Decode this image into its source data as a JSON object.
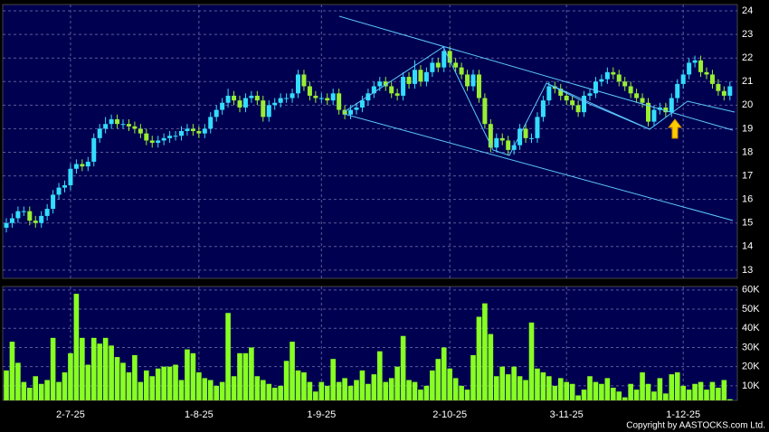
{
  "chart_data": [
    {
      "type": "candlestick",
      "up_color": "#33ddff",
      "down_color": "#99ee33",
      "ylim": [
        12.65,
        24.27
      ],
      "yticks": [
        13,
        14,
        15,
        16,
        17,
        18,
        19,
        20,
        21,
        22,
        23,
        24
      ],
      "grid": true,
      "open": [
        14.8,
        15.0,
        15.2,
        15.5,
        15.5,
        15.1,
        15.0,
        15.3,
        15.6,
        16.2,
        16.5,
        16.6,
        17.3,
        17.5,
        17.4,
        17.6,
        18.6,
        19.0,
        19.2,
        19.4,
        19.2,
        19.2,
        19.1,
        19.0,
        18.8,
        18.5,
        18.4,
        18.5,
        18.6,
        18.7,
        18.7,
        18.9,
        19.0,
        18.9,
        18.8,
        19.0,
        19.5,
        19.8,
        20.1,
        20.4,
        20.2,
        19.9,
        20.3,
        20.4,
        20.2,
        19.5,
        20.0,
        20.1,
        20.3,
        20.3,
        20.5,
        21.3,
        20.8,
        20.4,
        20.3,
        20.3,
        20.2,
        20.5,
        19.8,
        19.6,
        19.8,
        19.9,
        20.2,
        20.5,
        20.8,
        21.0,
        20.8,
        20.5,
        20.4,
        21.2,
        20.9,
        21.5,
        21.0,
        21.4,
        21.8,
        21.6,
        22.3,
        21.8,
        21.6,
        21.3,
        20.8,
        21.3,
        20.3,
        19.2,
        18.2,
        18.6,
        18.5,
        18.1,
        18.3,
        19.0,
        18.6,
        18.6,
        19.5,
        20.2,
        20.8,
        20.7,
        20.4,
        20.2,
        20.0,
        19.7,
        20.4,
        20.5,
        21.0,
        21.1,
        21.4,
        21.3,
        21.0,
        20.8,
        20.5,
        20.3,
        20.1,
        19.3,
        19.8,
        19.9,
        19.7,
        20.3,
        20.9,
        21.3,
        21.8,
        21.9,
        21.4,
        21.3,
        20.9,
        20.6,
        20.4
      ],
      "high": [
        15.2,
        15.4,
        15.7,
        15.7,
        15.7,
        15.3,
        15.5,
        15.8,
        16.4,
        16.7,
        16.8,
        17.5,
        17.7,
        17.7,
        17.8,
        18.8,
        19.2,
        19.5,
        19.6,
        19.6,
        19.4,
        19.4,
        19.3,
        19.2,
        19.0,
        18.7,
        18.7,
        18.8,
        18.9,
        18.9,
        19.1,
        19.2,
        19.2,
        19.1,
        19.2,
        19.7,
        20.0,
        20.3,
        20.7,
        20.6,
        20.4,
        20.5,
        20.6,
        20.6,
        20.4,
        20.2,
        20.3,
        20.5,
        20.5,
        20.7,
        21.5,
        21.5,
        21.0,
        20.6,
        20.5,
        20.5,
        20.7,
        20.7,
        20.0,
        20.0,
        20.1,
        20.4,
        20.7,
        21.0,
        21.2,
        21.2,
        21.0,
        20.7,
        21.4,
        21.4,
        21.9,
        21.7,
        21.6,
        22.0,
        22.0,
        22.5,
        22.5,
        22.0,
        21.8,
        21.5,
        21.5,
        21.5,
        20.5,
        19.4,
        18.8,
        18.8,
        18.7,
        18.5,
        19.2,
        19.2,
        18.8,
        19.7,
        20.4,
        21.0,
        21.0,
        20.9,
        20.6,
        20.4,
        20.2,
        20.6,
        20.7,
        21.2,
        21.3,
        21.6,
        21.6,
        21.5,
        21.2,
        21.0,
        20.7,
        20.5,
        20.3,
        20.0,
        20.1,
        20.1,
        20.5,
        21.1,
        21.5,
        22.0,
        22.1,
        22.1,
        21.6,
        21.5,
        21.1,
        20.8,
        21.0
      ],
      "low": [
        14.6,
        14.8,
        15.0,
        15.3,
        14.9,
        14.8,
        14.8,
        15.1,
        15.4,
        16.0,
        16.3,
        16.4,
        17.1,
        17.2,
        17.2,
        17.4,
        18.4,
        18.8,
        19.0,
        19.0,
        19.0,
        18.9,
        18.8,
        18.6,
        18.3,
        18.2,
        18.2,
        18.3,
        18.4,
        18.5,
        18.5,
        18.7,
        18.7,
        18.6,
        18.6,
        18.8,
        19.3,
        19.6,
        19.9,
        20.0,
        19.7,
        19.7,
        20.1,
        20.0,
        19.3,
        19.3,
        19.8,
        19.9,
        20.1,
        20.1,
        20.3,
        20.6,
        20.2,
        20.1,
        20.1,
        20.0,
        20.0,
        19.6,
        19.4,
        19.4,
        19.6,
        19.7,
        20.0,
        20.3,
        20.6,
        20.6,
        20.3,
        20.2,
        20.2,
        20.7,
        20.7,
        20.8,
        20.8,
        21.2,
        21.4,
        21.4,
        21.6,
        21.4,
        21.1,
        20.6,
        20.6,
        20.1,
        19.0,
        18.0,
        18.0,
        18.3,
        17.9,
        17.9,
        18.1,
        18.4,
        18.4,
        18.4,
        19.3,
        20.0,
        20.5,
        20.2,
        20.0,
        19.8,
        19.5,
        19.5,
        20.2,
        20.3,
        20.8,
        20.9,
        21.1,
        20.8,
        20.6,
        20.3,
        20.1,
        19.9,
        19.1,
        19.1,
        19.6,
        19.5,
        19.5,
        20.1,
        20.7,
        21.1,
        21.6,
        21.2,
        21.1,
        20.7,
        20.4,
        20.2,
        20.2
      ],
      "close": [
        15.0,
        15.2,
        15.5,
        15.5,
        15.1,
        15.0,
        15.3,
        15.6,
        16.2,
        16.5,
        16.6,
        17.3,
        17.5,
        17.4,
        17.6,
        18.6,
        19.0,
        19.2,
        19.4,
        19.2,
        19.2,
        19.1,
        19.0,
        18.8,
        18.5,
        18.4,
        18.5,
        18.6,
        18.7,
        18.7,
        18.9,
        19.0,
        18.9,
        18.8,
        19.0,
        19.5,
        19.8,
        20.1,
        20.4,
        20.2,
        19.9,
        20.3,
        20.4,
        20.2,
        19.5,
        20.0,
        20.1,
        20.3,
        20.3,
        20.5,
        21.3,
        20.8,
        20.4,
        20.3,
        20.3,
        20.2,
        20.5,
        19.8,
        19.6,
        19.8,
        19.9,
        20.2,
        20.5,
        20.8,
        21.0,
        20.8,
        20.5,
        20.4,
        21.2,
        20.9,
        21.5,
        21.0,
        21.4,
        21.8,
        21.6,
        22.3,
        21.8,
        21.6,
        21.3,
        20.8,
        21.3,
        20.3,
        19.2,
        18.2,
        18.6,
        18.5,
        18.1,
        18.3,
        19.0,
        18.6,
        18.6,
        19.5,
        20.2,
        20.8,
        20.7,
        20.4,
        20.2,
        20.0,
        19.7,
        20.4,
        20.5,
        21.0,
        21.1,
        21.4,
        21.3,
        21.0,
        20.8,
        20.5,
        20.3,
        20.1,
        19.3,
        19.8,
        19.9,
        19.7,
        20.3,
        20.9,
        21.3,
        21.8,
        21.9,
        21.4,
        21.3,
        20.9,
        20.6,
        20.4,
        20.8
      ]
    },
    {
      "type": "bar",
      "color": "#88ff22",
      "ylim": [
        2400,
        61800
      ],
      "yticks": [
        {
          "value": 10000,
          "label": "10K"
        },
        {
          "value": 20000,
          "label": "20K"
        },
        {
          "value": 30000,
          "label": "30K"
        },
        {
          "value": 40000,
          "label": "40K"
        },
        {
          "value": 50000,
          "label": "50K"
        },
        {
          "value": 60000,
          "label": "60K"
        }
      ],
      "grid": true,
      "categories": [
        null,
        null,
        null,
        null,
        null,
        null,
        null,
        null,
        null,
        null,
        null,
        "2-7-25",
        null,
        null,
        null,
        null,
        null,
        null,
        null,
        null,
        null,
        null,
        null,
        null,
        null,
        null,
        null,
        null,
        null,
        null,
        null,
        null,
        null,
        "1-8-25",
        null,
        null,
        null,
        null,
        null,
        null,
        null,
        null,
        null,
        null,
        null,
        null,
        null,
        null,
        null,
        null,
        null,
        null,
        null,
        null,
        "1-9-25",
        null,
        null,
        null,
        null,
        null,
        null,
        null,
        null,
        null,
        null,
        null,
        null,
        null,
        null,
        null,
        null,
        null,
        null,
        null,
        null,
        null,
        "2-10-25",
        null,
        null,
        null,
        null,
        null,
        null,
        null,
        null,
        null,
        null,
        null,
        null,
        null,
        null,
        null,
        null,
        null,
        null,
        null,
        "3-11-25",
        null,
        null,
        null,
        null,
        null,
        null,
        null,
        null,
        null,
        null,
        null,
        null,
        null,
        null,
        null,
        null,
        null,
        null,
        null,
        "1-12-25",
        null,
        null,
        null,
        null,
        null,
        null,
        null,
        null
      ],
      "values": [
        18000,
        33000,
        22000,
        12000,
        9000,
        15000,
        11000,
        13000,
        35000,
        12000,
        17000,
        27000,
        58000,
        35000,
        21000,
        35000,
        32000,
        35000,
        31000,
        25000,
        22000,
        17000,
        26000,
        12000,
        18000,
        15000,
        19000,
        20000,
        20000,
        21000,
        13000,
        29000,
        27000,
        17000,
        14000,
        13000,
        10000,
        12000,
        48000,
        15000,
        27000,
        27000,
        30000,
        15000,
        13000,
        11000,
        9000,
        10000,
        23000,
        33000,
        18000,
        17000,
        12000,
        7000,
        12000,
        10000,
        24000,
        12000,
        14000,
        10000,
        13000,
        18000,
        11000,
        16000,
        28000,
        12000,
        14000,
        20000,
        36000,
        13000,
        12000,
        8000,
        10000,
        18000,
        24000,
        30000,
        19000,
        14000,
        10000,
        8000,
        26000,
        46000,
        53000,
        37000,
        15000,
        20000,
        16000,
        20000,
        15000,
        13000,
        43000,
        19000,
        17000,
        15000,
        10000,
        14000,
        12000,
        11000,
        5000,
        8000,
        15000,
        12000,
        11000,
        14000,
        9000,
        7000,
        4000,
        11000,
        8000,
        17000,
        11000,
        7000,
        14000,
        6000,
        16000,
        17000,
        10000,
        8000,
        11000,
        12000,
        8000,
        12000,
        9000,
        13000,
        3000
      ]
    }
  ],
  "copyright": "Copyright by AASTOCKS.com Ltd."
}
